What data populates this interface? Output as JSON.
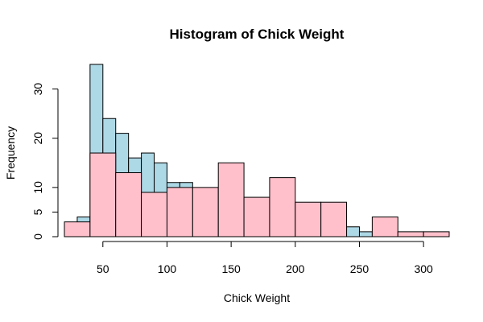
{
  "chart_data": {
    "type": "bar",
    "title": "Histogram of Chick Weight",
    "xlabel": "Chick Weight",
    "ylabel": "Frequency",
    "xlim": [
      20,
      320
    ],
    "ylim": [
      0,
      35
    ],
    "x_ticks": [
      50,
      100,
      150,
      200,
      250,
      300
    ],
    "y_ticks": [
      0,
      5,
      10,
      20,
      30
    ],
    "grid": false,
    "legend": "none",
    "series": [
      {
        "color": "#add8e6",
        "bins": [
          {
            "start": 30,
            "end": 40,
            "count": 4
          },
          {
            "start": 40,
            "end": 50,
            "count": 35
          },
          {
            "start": 50,
            "end": 60,
            "count": 24
          },
          {
            "start": 60,
            "end": 70,
            "count": 21
          },
          {
            "start": 70,
            "end": 80,
            "count": 16
          },
          {
            "start": 80,
            "end": 90,
            "count": 17
          },
          {
            "start": 90,
            "end": 100,
            "count": 15
          },
          {
            "start": 100,
            "end": 110,
            "count": 11
          },
          {
            "start": 110,
            "end": 120,
            "count": 11
          },
          {
            "start": 120,
            "end": 130,
            "count": 6
          },
          {
            "start": 240,
            "end": 250,
            "count": 2
          },
          {
            "start": 250,
            "end": 260,
            "count": 1
          }
        ]
      },
      {
        "color": "#ffc0cb",
        "bins": [
          {
            "start": 20,
            "end": 40,
            "count": 3
          },
          {
            "start": 40,
            "end": 60,
            "count": 17
          },
          {
            "start": 60,
            "end": 80,
            "count": 13
          },
          {
            "start": 80,
            "end": 100,
            "count": 9
          },
          {
            "start": 100,
            "end": 120,
            "count": 10
          },
          {
            "start": 120,
            "end": 140,
            "count": 10
          },
          {
            "start": 140,
            "end": 160,
            "count": 15
          },
          {
            "start": 160,
            "end": 180,
            "count": 8
          },
          {
            "start": 180,
            "end": 200,
            "count": 12
          },
          {
            "start": 200,
            "end": 220,
            "count": 7
          },
          {
            "start": 220,
            "end": 240,
            "count": 7
          },
          {
            "start": 240,
            "end": 260,
            "count": 0
          },
          {
            "start": 260,
            "end": 280,
            "count": 4
          },
          {
            "start": 280,
            "end": 300,
            "count": 1
          },
          {
            "start": 300,
            "end": 320,
            "count": 1
          }
        ]
      }
    ]
  }
}
